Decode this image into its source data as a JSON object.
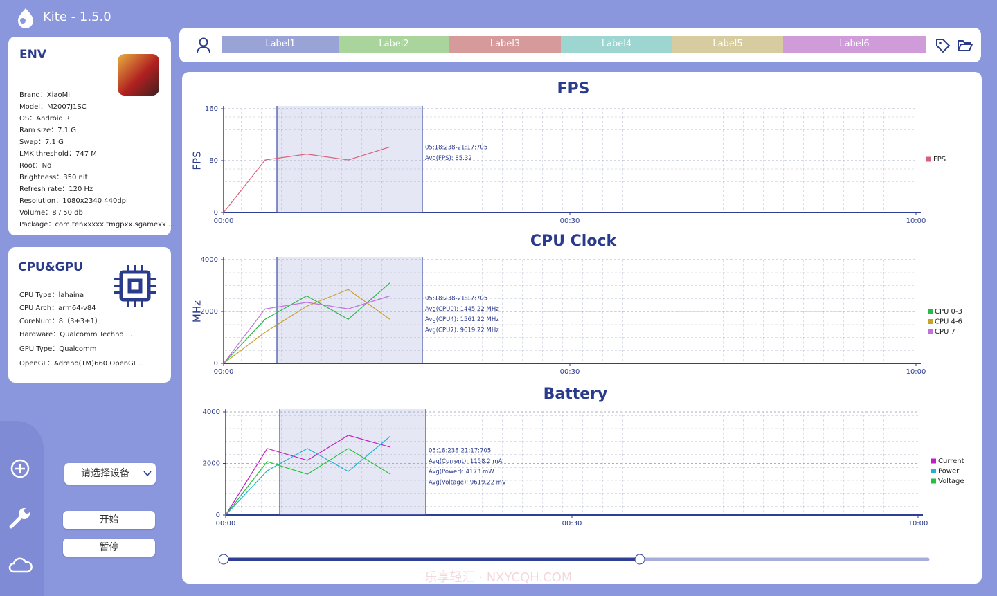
{
  "app": {
    "title": "Kite - 1.5.0"
  },
  "env": {
    "title": "ENV",
    "fields": [
      "Brand：XiaoMi",
      "Model：M2007J1SC",
      "OS：Android R",
      "Ram size：7.1 G",
      "Swap：7.1 G",
      "LMK threshold：747 M",
      "Root：No",
      "Brightness：350 nit",
      "Refresh rate：120 Hz",
      "Resolution：1080x2340 440dpi",
      "Volume：8 / 50 db",
      "Package：com.tenxxxxx.tmgpxx.sgamexx ..."
    ]
  },
  "cpu_gpu": {
    "title": "CPU&GPU",
    "fields": [
      "CPU Type：lahaina",
      "CPU Arch：arm64-v84",
      "CoreNum：8（3+3+1）",
      "Hardware：Qualcomm Techno ...",
      "GPU Type：Qualcomm",
      "OpenGL：Adreno(TM)660 OpenGL ..."
    ]
  },
  "labels": [
    {
      "text": "Label1",
      "color": "#9aa3d6"
    },
    {
      "text": "Label2",
      "color": "#a9d49b"
    },
    {
      "text": "Label3",
      "color": "#d69a9a"
    },
    {
      "text": "Label4",
      "color": "#9dd6d0"
    },
    {
      "text": "Label5",
      "color": "#d6cc9f"
    },
    {
      "text": "Label6",
      "color": "#cf9bd8"
    }
  ],
  "controls": {
    "device_select": "请选择设备",
    "start": "开始",
    "pause": "暂停"
  },
  "watermark": "乐享轻汇 · NXYCQH.COM",
  "charts": [
    {
      "type": "line",
      "title": "FPS",
      "ylabel": "FPS",
      "xlim": [
        0,
        100
      ],
      "ylim": [
        0,
        160
      ],
      "yticks": [
        0,
        80,
        160
      ],
      "xticks": [
        {
          "value": 0,
          "label": "00:00"
        },
        {
          "value": 50,
          "label": "00:30"
        },
        {
          "value": 100,
          "label": "10:00"
        }
      ],
      "x": [
        0,
        6,
        12,
        18,
        24
      ],
      "selection_x": [
        7.7,
        28.7
      ],
      "series": [
        {
          "name": "FPS",
          "color": "#d9607a",
          "values": [
            0,
            81,
            90,
            81,
            101
          ]
        }
      ],
      "annotations": [
        "05:18:238-21:17:705",
        "Avg(FPS): 85.32"
      ]
    },
    {
      "type": "line",
      "title": "CPU Clock",
      "ylabel": "MHz",
      "xlim": [
        0,
        100
      ],
      "ylim": [
        0,
        4000
      ],
      "yticks": [
        0,
        2000,
        4000
      ],
      "xticks": [
        {
          "value": 0,
          "label": "00:00"
        },
        {
          "value": 50,
          "label": "00:30"
        },
        {
          "value": 100,
          "label": "10:00"
        }
      ],
      "x": [
        0,
        6,
        12,
        18,
        24
      ],
      "selection_x": [
        7.7,
        28.7
      ],
      "series": [
        {
          "name": "CPU 0-3",
          "color": "#2db84a",
          "values": [
            0,
            1700,
            2600,
            1700,
            3100
          ]
        },
        {
          "name": "CPU 4-6",
          "color": "#c9a02a",
          "values": [
            0,
            1200,
            2200,
            2850,
            1700
          ]
        },
        {
          "name": "CPU 7",
          "color": "#c071e0",
          "values": [
            0,
            2100,
            2350,
            2100,
            2600
          ]
        }
      ],
      "annotations": [
        "05:18:238-21:17:705",
        "Avg(CPU0): 1445.22 MHz",
        "Avg(CPU4): 1561.22 MHz",
        "Avg(CPU7): 9619.22 MHz"
      ]
    },
    {
      "type": "line",
      "title": "Battery",
      "xlim": [
        0,
        100
      ],
      "ylim": [
        0,
        4000
      ],
      "yticks": [
        0,
        2000,
        4000
      ],
      "xticks": [
        {
          "value": 0,
          "label": "00:00"
        },
        {
          "value": 50,
          "label": "00:30"
        },
        {
          "value": 100,
          "label": "10:00"
        }
      ],
      "x": [
        0,
        6,
        11.8,
        17.7,
        23.8
      ],
      "selection_x": [
        7.8,
        28.9
      ],
      "series": [
        {
          "name": "Current",
          "color": "#c21fc0",
          "values": [
            0,
            2580,
            2120,
            3090,
            2630
          ]
        },
        {
          "name": "Power",
          "color": "#21b1d2",
          "values": [
            0,
            1720,
            2580,
            1690,
            3060
          ]
        },
        {
          "name": "Voltage",
          "color": "#22c23a",
          "values": [
            0,
            2070,
            1580,
            2580,
            1580
          ]
        }
      ],
      "annotations": [
        "05:18:238-21:17:705",
        "Avg(Current): 1158.2 mA",
        "Avg(Power): 4173 mW",
        "Avg(Voltage): 9619.22 mV"
      ]
    }
  ]
}
